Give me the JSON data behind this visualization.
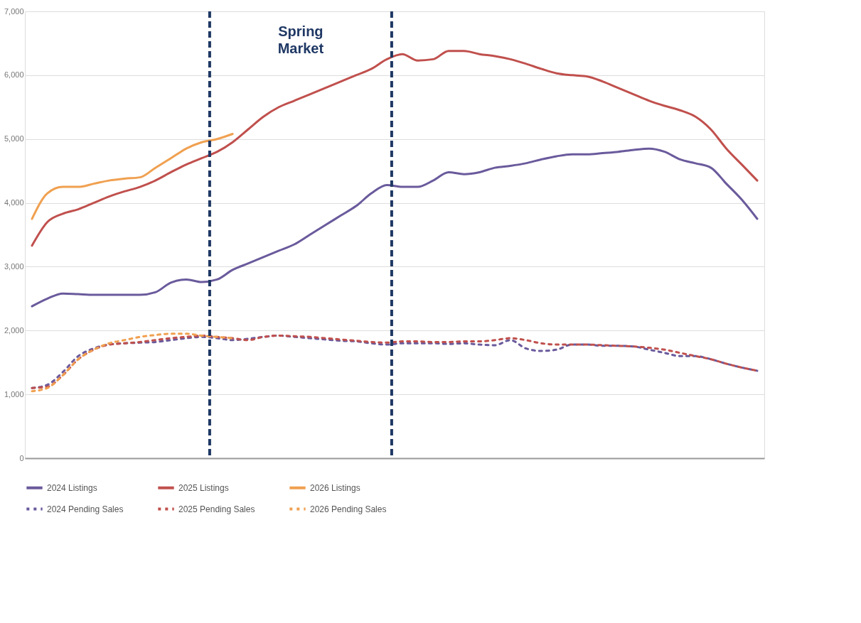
{
  "chart_data": {
    "type": "line",
    "categories": [
      null,
      null,
      null,
      null,
      null,
      null,
      null,
      null,
      null,
      null,
      null,
      null,
      null,
      null,
      null,
      null,
      null,
      null,
      null,
      null,
      null,
      null,
      null,
      null,
      null,
      null,
      null,
      null,
      null,
      null,
      null,
      null,
      null,
      null,
      null,
      null,
      null,
      null,
      null,
      null,
      null,
      null,
      null,
      null,
      null,
      null,
      null,
      null
    ],
    "series": [
      {
        "name": "2024 Listings",
        "color": "#6a5a9c",
        "line_style": "solid",
        "values": [
          2380,
          2500,
          2580,
          2570,
          2560,
          2560,
          2560,
          2560,
          2600,
          2750,
          2800,
          2760,
          2800,
          2950,
          3050,
          3150,
          3250,
          3350,
          3500,
          3650,
          3800,
          3950,
          4150,
          4280,
          4250,
          4250,
          4350,
          4480,
          4450,
          4480,
          4550,
          4580,
          4620,
          4680,
          4730,
          4760,
          4760,
          4780,
          4800,
          4830,
          4850,
          4800,
          4680,
          4620,
          4550,
          4300,
          4050,
          3750
        ]
      },
      {
        "name": "2025 Listings",
        "color": "#c0504d",
        "line_style": "solid",
        "values": [
          3330,
          3700,
          3830,
          3900,
          4000,
          4100,
          4180,
          4250,
          4350,
          4480,
          4600,
          4700,
          4800,
          4950,
          5150,
          5350,
          5500,
          5600,
          5700,
          5800,
          5900,
          6000,
          6100,
          6250,
          6330,
          6230,
          6250,
          6380,
          6380,
          6330,
          6300,
          6250,
          6180,
          6100,
          6030,
          6000,
          5980,
          5900,
          5800,
          5700,
          5600,
          5520,
          5450,
          5350,
          5150,
          4850,
          4600,
          4350
        ]
      },
      {
        "name": "2026 Listings",
        "color": "#f0a050",
        "line_style": "solid",
        "values": [
          3750,
          4150,
          4250,
          4250,
          4300,
          4350,
          4380,
          4400,
          4550,
          4700,
          4850,
          4950,
          5000,
          5080,
          null,
          null,
          null,
          null,
          null,
          null,
          null,
          null,
          null,
          null,
          null,
          null,
          null,
          null,
          null,
          null,
          null,
          null,
          null,
          null,
          null,
          null,
          null,
          null,
          null,
          null,
          null,
          null,
          null,
          null,
          null,
          null,
          null,
          null
        ]
      },
      {
        "name": "2024 Pending Sales",
        "color": "#6a5a9c",
        "line_style": "dashed",
        "values": [
          1100,
          1150,
          1350,
          1600,
          1720,
          1780,
          1800,
          1810,
          1820,
          1850,
          1880,
          1900,
          1880,
          1850,
          1870,
          1900,
          1920,
          1900,
          1880,
          1860,
          1840,
          1830,
          1800,
          1780,
          1800,
          1800,
          1800,
          1790,
          1800,
          1780,
          1770,
          1850,
          1720,
          1680,
          1700,
          1780,
          1780,
          1760,
          1760,
          1750,
          1700,
          1650,
          1600,
          1600,
          1550,
          1480,
          1420,
          1370
        ]
      },
      {
        "name": "2025 Pending Sales",
        "color": "#c0504d",
        "line_style": "dashed",
        "values": [
          1100,
          1120,
          1300,
          1550,
          1700,
          1780,
          1800,
          1820,
          1850,
          1880,
          1900,
          1920,
          1900,
          1880,
          1850,
          1900,
          1920,
          1910,
          1900,
          1880,
          1860,
          1840,
          1820,
          1810,
          1830,
          1830,
          1820,
          1820,
          1830,
          1830,
          1850,
          1880,
          1850,
          1800,
          1780,
          1780,
          1780,
          1770,
          1760,
          1750,
          1730,
          1700,
          1650,
          1600,
          1550,
          1480,
          1420,
          1370
        ]
      },
      {
        "name": "2026 Pending Sales",
        "color": "#f0a050",
        "line_style": "dashed",
        "values": [
          1050,
          1100,
          1300,
          1550,
          1700,
          1800,
          1850,
          1900,
          1930,
          1950,
          1950,
          1920,
          1900,
          1880,
          null,
          null,
          null,
          null,
          null,
          null,
          null,
          null,
          null,
          null,
          null,
          null,
          null,
          null,
          null,
          null,
          null,
          null,
          null,
          null,
          null,
          null,
          null,
          null,
          null,
          null,
          null,
          null,
          null,
          null,
          null,
          null,
          null,
          null
        ]
      }
    ],
    "ylim": [
      0,
      7000
    ],
    "yticks": [
      0,
      {
        "value": 1000,
        "label": "1,000"
      },
      {
        "value": 2000,
        "label": "2,000"
      },
      {
        "value": 3000,
        "label": "3,000"
      },
      {
        "value": 4000,
        "label": "4,000"
      },
      {
        "value": 5000,
        "label": "5,000"
      },
      {
        "value": 6000,
        "label": "6,000"
      },
      {
        "value": 7000,
        "label": "7,000"
      }
    ],
    "grid": "y",
    "legend": "bottom",
    "annotations": [
      "Spring Market"
    ]
  }
}
